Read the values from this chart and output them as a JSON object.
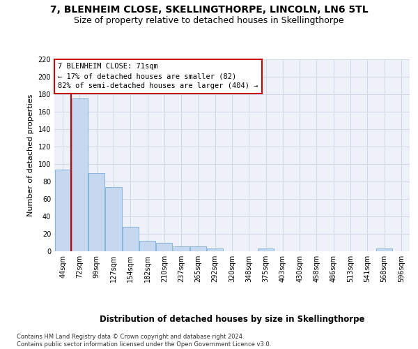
{
  "title": "7, BLENHEIM CLOSE, SKELLINGTHORPE, LINCOLN, LN6 5TL",
  "subtitle": "Size of property relative to detached houses in Skellingthorpe",
  "xlabel": "Distribution of detached houses by size in Skellingthorpe",
  "ylabel": "Number of detached properties",
  "categories": [
    "44sqm",
    "72sqm",
    "99sqm",
    "127sqm",
    "154sqm",
    "182sqm",
    "210sqm",
    "237sqm",
    "265sqm",
    "292sqm",
    "320sqm",
    "348sqm",
    "375sqm",
    "403sqm",
    "430sqm",
    "458sqm",
    "486sqm",
    "513sqm",
    "541sqm",
    "568sqm",
    "596sqm"
  ],
  "values": [
    94,
    175,
    90,
    74,
    28,
    12,
    10,
    6,
    6,
    3,
    0,
    0,
    3,
    0,
    0,
    0,
    0,
    0,
    0,
    3,
    0
  ],
  "bar_color": "#c5d8f0",
  "bar_edgecolor": "#7aadd4",
  "grid_color": "#d0d8e8",
  "bg_color": "#eef2f8",
  "vline_x": 1,
  "vline_color": "#cc0000",
  "annotation_text": "7 BLENHEIM CLOSE: 71sqm\n← 17% of detached houses are smaller (82)\n82% of semi-detached houses are larger (404) →",
  "annotation_box_color": "#cc0000",
  "footer": "Contains HM Land Registry data © Crown copyright and database right 2024.\nContains public sector information licensed under the Open Government Licence v3.0.",
  "ylim": [
    0,
    220
  ],
  "yticks": [
    0,
    20,
    40,
    60,
    80,
    100,
    120,
    140,
    160,
    180,
    200,
    220
  ],
  "title_fontsize": 10,
  "subtitle_fontsize": 9,
  "xlabel_fontsize": 8.5,
  "ylabel_fontsize": 8,
  "tick_fontsize": 7,
  "annotation_fontsize": 7.5,
  "footer_fontsize": 6
}
